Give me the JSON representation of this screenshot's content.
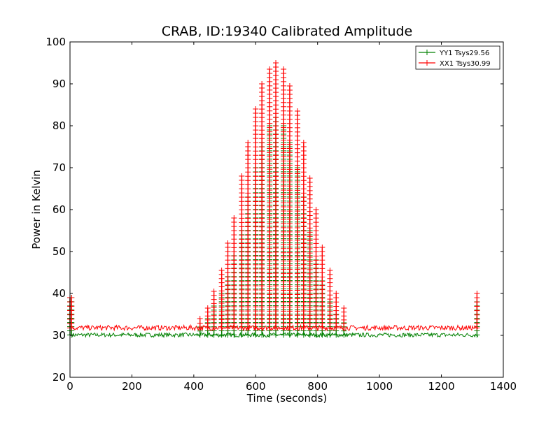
{
  "chart_data": {
    "type": "line",
    "title": "CRAB, ID:19340 Calibrated Amplitude",
    "xlabel": "Time (seconds)",
    "ylabel": "Power in Kelvin",
    "xlim": [
      0,
      1400
    ],
    "ylim": [
      20,
      100
    ],
    "xticks": [
      "0",
      "200",
      "400",
      "600",
      "800",
      "1000",
      "1200",
      "1400"
    ],
    "yticks": [
      "20",
      "30",
      "40",
      "50",
      "60",
      "70",
      "80",
      "90",
      "100"
    ],
    "grid": false,
    "legend_position": "top-right",
    "marker": "plus",
    "series": [
      {
        "name": "YY1 Tsys29.56",
        "color": "#008000",
        "baseline": 30.1,
        "x": [
          0,
          5,
          420,
          445,
          465,
          490,
          510,
          530,
          555,
          575,
          600,
          620,
          645,
          665,
          690,
          710,
          735,
          755,
          775,
          795,
          815,
          840,
          860,
          885,
          1315
        ],
        "y": [
          39,
          39,
          32,
          34,
          37,
          40,
          44,
          49,
          55,
          63,
          70,
          76,
          80,
          82,
          80,
          76,
          70,
          63,
          55,
          48,
          43,
          38,
          35,
          33,
          38
        ]
      },
      {
        "name": "XX1 Tsys30.99",
        "color": "#ff0000",
        "baseline": 31.8,
        "x": [
          0,
          5,
          420,
          445,
          465,
          490,
          510,
          530,
          555,
          575,
          600,
          620,
          645,
          665,
          690,
          710,
          735,
          755,
          775,
          795,
          815,
          840,
          860,
          885,
          1315
        ],
        "y": [
          39,
          39,
          34,
          36.5,
          40.5,
          45.5,
          52,
          58,
          68,
          76,
          84,
          90,
          93.5,
          95,
          93.5,
          89.5,
          83.5,
          76,
          67.5,
          60,
          51,
          45.5,
          40,
          36.5,
          40
        ]
      }
    ]
  }
}
